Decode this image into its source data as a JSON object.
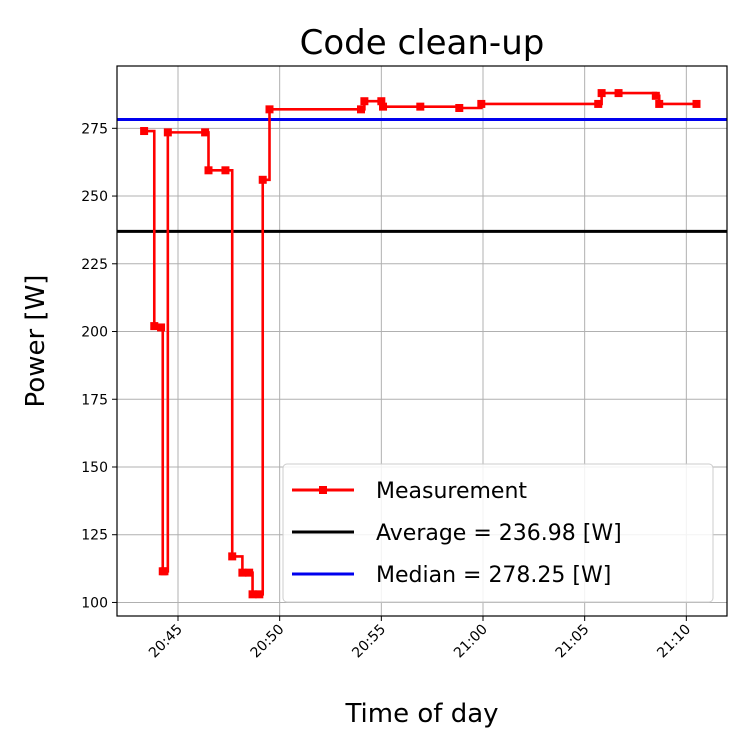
{
  "chart_data": {
    "type": "line",
    "title": "Code clean-up",
    "xlabel": "Time of day",
    "ylabel": "Power [W]",
    "x_tick_labels": [
      "20:45",
      "20:50",
      "20:55",
      "21:00",
      "21:05",
      "21:10"
    ],
    "y_ticks": [
      100,
      125,
      150,
      175,
      200,
      225,
      250,
      275
    ],
    "xlim": [
      "20:42:00",
      "21:12:00"
    ],
    "ylim": [
      95,
      298
    ],
    "grid": true,
    "legend_position": "lower-right",
    "drawstyle": "steps-post",
    "series": [
      {
        "name": "Measurement",
        "color": "#ff0000",
        "marker": "square",
        "x": [
          "20:43:20",
          "20:43:50",
          "20:44:10",
          "20:44:15",
          "20:44:20",
          "20:44:30",
          "20:46:20",
          "20:46:30",
          "20:47:20",
          "20:47:40",
          "20:48:10",
          "20:48:30",
          "20:48:40",
          "20:49:00",
          "20:49:10",
          "20:49:30",
          "20:54:00",
          "20:54:10",
          "20:55:00",
          "20:55:05",
          "20:56:55",
          "20:58:50",
          "20:59:55",
          "21:05:40",
          "21:05:50",
          "21:06:40",
          "21:08:30",
          "21:08:40",
          "21:10:30"
        ],
        "values": [
          274,
          202,
          201.5,
          111.5,
          111.5,
          273.5,
          273.5,
          259.5,
          259.5,
          117,
          111,
          111,
          103,
          103,
          256,
          282,
          282,
          285,
          285,
          283,
          283,
          282.5,
          284,
          284,
          288,
          288,
          287,
          284,
          284
        ]
      },
      {
        "name": "Average = 236.98 [W]",
        "color": "#000000",
        "value": 236.98
      },
      {
        "name": "Median = 278.25 [W]",
        "color": "#0000ee",
        "value": 278.25
      }
    ]
  }
}
